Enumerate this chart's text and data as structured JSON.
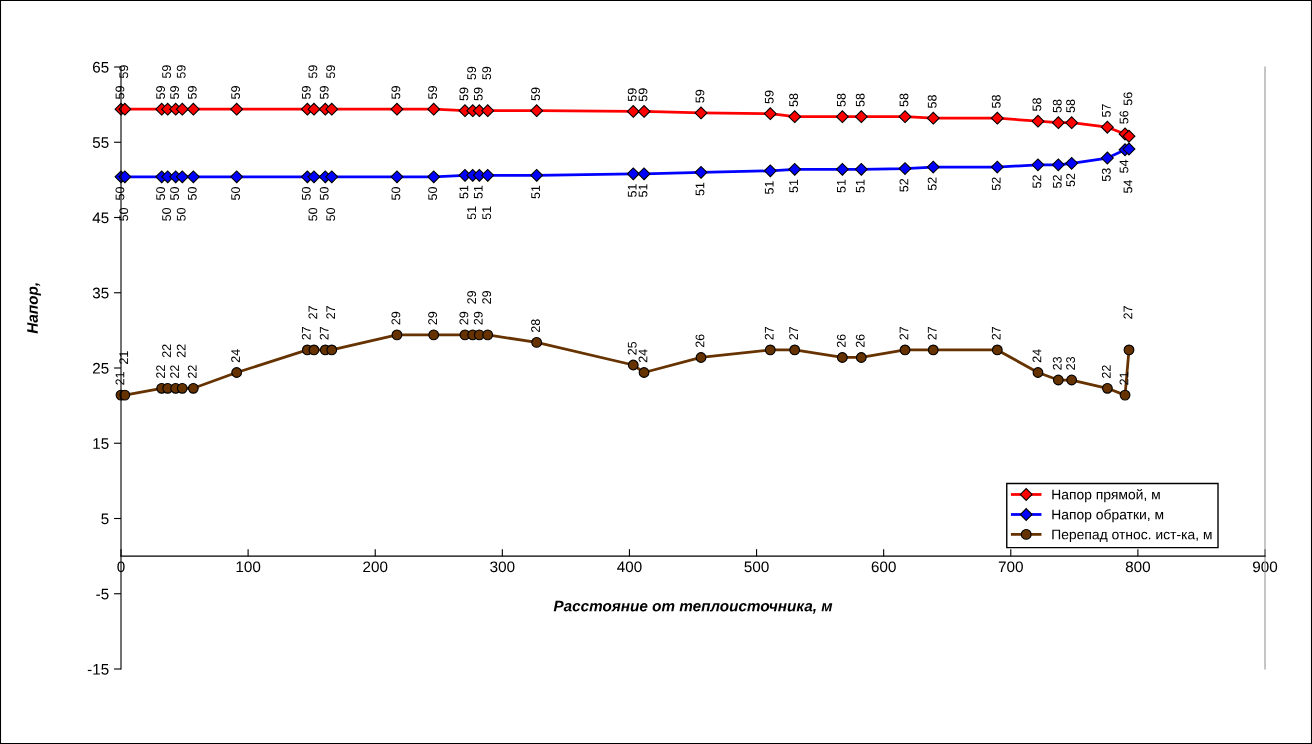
{
  "chart_data": {
    "type": "line",
    "xlabel": "Расстояние от теплоисточника, м",
    "ylabel": "Напор,",
    "x": [
      0,
      3,
      32,
      36.7,
      43,
      48.2,
      56.9,
      91,
      146.6,
      151.8,
      160.7,
      165.8,
      217.1,
      246,
      270.6,
      276.7,
      281.9,
      288.5,
      327,
      403,
      411.5,
      456.3,
      510.8,
      530,
      567.5,
      582.4,
      616.8,
      639,
      689.4,
      721.4,
      737.4,
      747.9,
      776,
      789.9,
      793
    ],
    "series": [
      {
        "name": "Напор прямой, м",
        "color": "#ff0000",
        "marker": "diamond",
        "values": [
          59.4,
          59.4,
          59.4,
          59.4,
          59.4,
          59.4,
          59.4,
          59.4,
          59.4,
          59.4,
          59.4,
          59.4,
          59.4,
          59.4,
          59.2,
          59.2,
          59.2,
          59.2,
          59.2,
          59.1,
          59.1,
          58.9,
          58.8,
          58.4,
          58.4,
          58.4,
          58.4,
          58.2,
          58.2,
          57.8,
          57.6,
          57.6,
          57.0,
          56.1,
          55.8
        ],
        "value_labels": [
          "59",
          "59",
          "59",
          "59",
          "59",
          "59",
          "59",
          "59",
          "59",
          "59",
          "59",
          "59",
          "59",
          "59",
          "59",
          "59",
          "59",
          "59",
          "59",
          "59",
          "59",
          "59",
          "59",
          "58",
          "58",
          "58",
          "58",
          "58",
          "58",
          "58",
          "58",
          "58",
          "57",
          "56",
          "56"
        ]
      },
      {
        "name": "Напор обратки, м",
        "color": "#0000ff",
        "marker": "diamond",
        "values": [
          50.4,
          50.4,
          50.4,
          50.4,
          50.4,
          50.4,
          50.4,
          50.4,
          50.4,
          50.4,
          50.4,
          50.4,
          50.4,
          50.4,
          50.6,
          50.6,
          50.6,
          50.6,
          50.6,
          50.8,
          50.8,
          51.0,
          51.2,
          51.4,
          51.4,
          51.4,
          51.5,
          51.7,
          51.7,
          52.0,
          52.0,
          52.2,
          52.9,
          54.0,
          54.1
        ],
        "value_labels": [
          "50",
          "50",
          "50",
          "50",
          "50",
          "50",
          "50",
          "50",
          "50",
          "50",
          "50",
          "50",
          "50",
          "50",
          "51",
          "51",
          "51",
          "51",
          "51",
          "51",
          "51",
          "51",
          "51",
          "51",
          "51",
          "51",
          "52",
          "52",
          "52",
          "52",
          "52",
          "52",
          "53",
          "54",
          "54"
        ]
      },
      {
        "name": "Перепад относ. ист-ка, м",
        "color": "#663300",
        "marker": "circle",
        "values": [
          21.4,
          21.4,
          22.3,
          22.3,
          22.3,
          22.3,
          22.3,
          24.4,
          27.4,
          27.4,
          27.4,
          27.4,
          29.4,
          29.4,
          29.4,
          29.4,
          29.4,
          29.4,
          28.4,
          25.4,
          24.4,
          26.4,
          27.4,
          27.4,
          26.4,
          26.4,
          27.4,
          27.4,
          27.4,
          24.4,
          23.4,
          23.4,
          22.3,
          21.4,
          27.4
        ],
        "value_labels": [
          "21",
          "21",
          "22",
          "22",
          "22",
          "22",
          "22",
          "24",
          "27",
          "27",
          "27",
          "27",
          "29",
          "29",
          "29",
          "29",
          "29",
          "29",
          "28",
          "25",
          "24",
          "26",
          "27",
          "27",
          "26",
          "26",
          "27",
          "27",
          "27",
          "24",
          "23",
          "23",
          "22",
          "21",
          "27"
        ]
      }
    ],
    "xlim": [
      0,
      900
    ],
    "xticks": [
      0,
      100,
      200,
      300,
      400,
      500,
      600,
      700,
      800,
      900
    ],
    "ylim": [
      -15,
      65
    ],
    "yticks": [
      -15,
      -5,
      5,
      15,
      25,
      35,
      45,
      55,
      65
    ],
    "grid": false,
    "legend": "bottom right",
    "line_style": "solid"
  }
}
